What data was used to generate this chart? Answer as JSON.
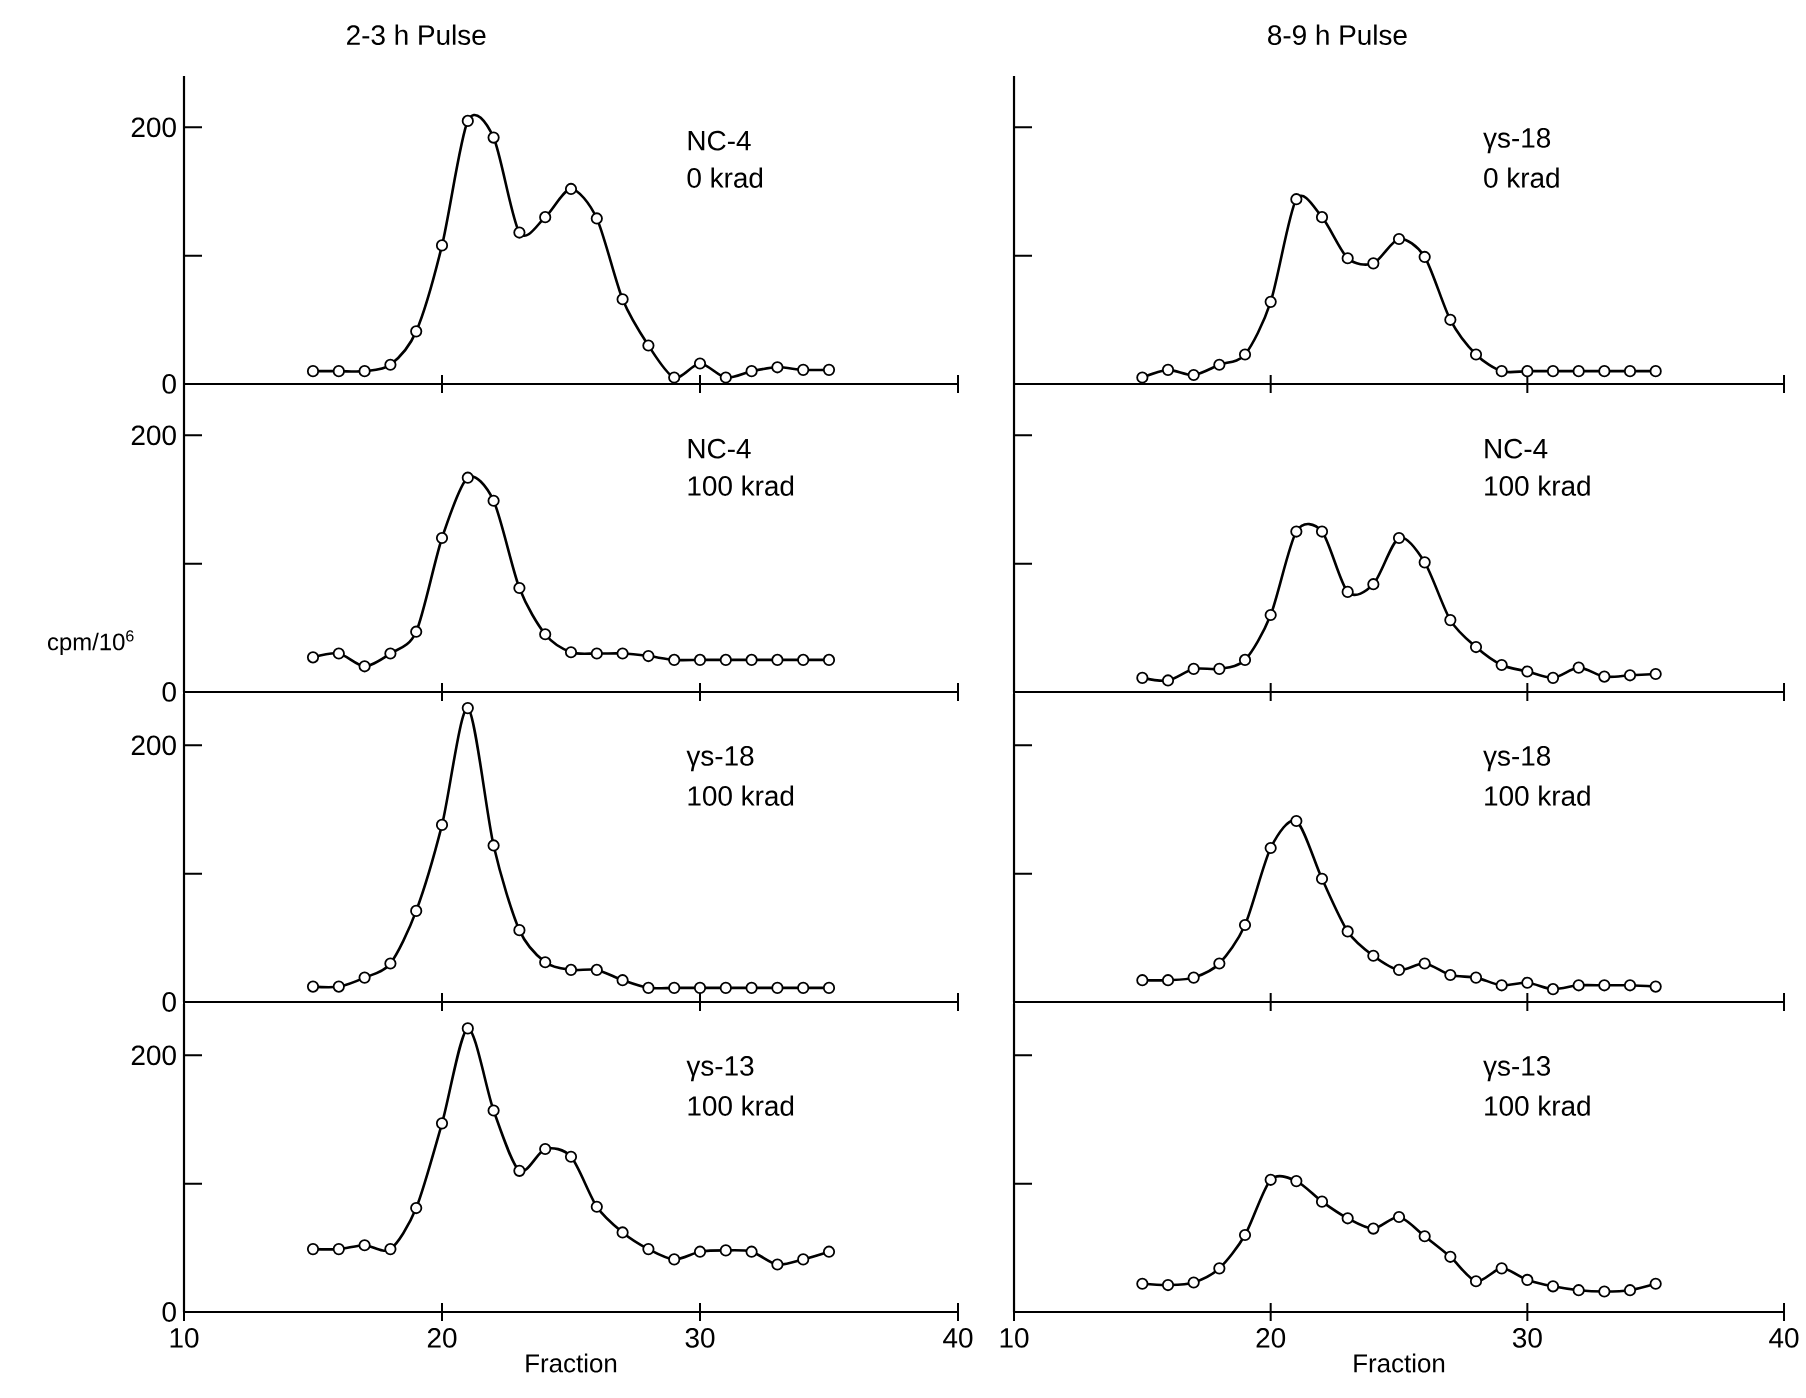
{
  "chart_data": [
    {
      "type": "line",
      "title": "2-3 h Pulse",
      "x": [
        15,
        16,
        17,
        18,
        19,
        20,
        21,
        22,
        23,
        24,
        25,
        26,
        27,
        28,
        29,
        30,
        31,
        32,
        33,
        34,
        35
      ],
      "series": [
        {
          "color": "#000000",
          "values": [
            10,
            10,
            10,
            15,
            41,
            108,
            205,
            192,
            118,
            130,
            152,
            129,
            66,
            30,
            5,
            16,
            5,
            10,
            13,
            11,
            11
          ]
        }
      ],
      "xlim": [
        10,
        40
      ],
      "ylim": [
        0,
        240
      ],
      "xticks": [
        10,
        20,
        30,
        40
      ],
      "yticks": [
        0,
        {
          "value": 100,
          "label": null
        },
        200
      ],
      "tick_labels": "y",
      "marker": "circle",
      "line_style": "solid",
      "annotations": [
        "NC-4",
        "0 krad"
      ]
    },
    {
      "type": "line",
      "title": "8-9 h Pulse",
      "x": [
        15,
        16,
        17,
        18,
        19,
        20,
        21,
        22,
        23,
        24,
        25,
        26,
        27,
        28,
        29,
        30,
        31,
        32,
        33,
        34,
        35
      ],
      "series": [
        {
          "color": "#000000",
          "values": [
            5,
            11,
            7,
            15,
            23,
            64,
            144,
            130,
            98,
            94,
            113,
            99,
            50,
            23,
            10,
            10,
            10,
            10,
            10,
            10,
            10
          ]
        }
      ],
      "xlim": [
        10,
        40
      ],
      "ylim": [
        0,
        240
      ],
      "xticks": [
        10,
        20,
        30,
        40
      ],
      "yticks": [
        {
          "value": 0,
          "label": null
        },
        {
          "value": 100,
          "label": null
        },
        {
          "value": 200,
          "label": null
        }
      ],
      "tick_labels": false,
      "marker": "circle",
      "line_style": "solid",
      "annotations": [
        "γs-18",
        "0 krad"
      ]
    },
    {
      "type": "line",
      "ylabel": "cpm/10$^{6}$",
      "x": [
        15,
        16,
        17,
        18,
        19,
        20,
        21,
        22,
        23,
        24,
        25,
        26,
        27,
        28,
        29,
        30,
        31,
        32,
        33,
        34,
        35
      ],
      "series": [
        {
          "color": "#000000",
          "values": [
            27,
            30,
            20,
            30,
            47,
            120,
            167,
            149,
            81,
            45,
            31,
            30,
            30,
            28,
            25,
            25,
            25,
            25,
            25,
            25,
            25
          ]
        }
      ],
      "xlim": [
        10,
        40
      ],
      "ylim": [
        0,
        240
      ],
      "xticks": [
        10,
        20,
        30,
        40
      ],
      "yticks": [
        0,
        {
          "value": 100,
          "label": null
        },
        200
      ],
      "tick_labels": "y",
      "marker": "circle",
      "line_style": "solid",
      "annotations": [
        "NC-4",
        "100 krad"
      ]
    },
    {
      "type": "line",
      "x": [
        15,
        16,
        17,
        18,
        19,
        20,
        21,
        22,
        23,
        24,
        25,
        26,
        27,
        28,
        29,
        30,
        31,
        32,
        33,
        34,
        35
      ],
      "series": [
        {
          "color": "#000000",
          "values": [
            11,
            9,
            18,
            18,
            25,
            60,
            125,
            125,
            78,
            84,
            120,
            101,
            56,
            35,
            21,
            16,
            11,
            19,
            12,
            13,
            14
          ]
        }
      ],
      "xlim": [
        10,
        40
      ],
      "ylim": [
        0,
        240
      ],
      "xticks": [
        10,
        20,
        30,
        40
      ],
      "yticks": [
        {
          "value": 0,
          "label": null
        },
        {
          "value": 100,
          "label": null
        },
        {
          "value": 200,
          "label": null
        }
      ],
      "tick_labels": false,
      "marker": "circle",
      "line_style": "solid",
      "annotations": [
        "NC-4",
        "100 krad"
      ]
    },
    {
      "type": "line",
      "x": [
        15,
        16,
        17,
        18,
        19,
        20,
        21,
        22,
        23,
        24,
        25,
        26,
        27,
        28,
        29,
        30,
        31,
        32,
        33,
        34,
        35
      ],
      "series": [
        {
          "color": "#000000",
          "values": [
            12,
            12,
            19,
            30,
            71,
            138,
            229,
            122,
            56,
            31,
            25,
            25,
            17,
            11,
            11,
            11,
            11,
            11,
            11,
            11,
            11
          ]
        }
      ],
      "xlim": [
        10,
        40
      ],
      "ylim": [
        0,
        240
      ],
      "xticks": [
        10,
        20,
        30,
        40
      ],
      "yticks": [
        0,
        {
          "value": 100,
          "label": null
        },
        200
      ],
      "tick_labels": "y",
      "marker": "circle",
      "line_style": "solid",
      "annotations": [
        "γs-18",
        "100 krad"
      ]
    },
    {
      "type": "line",
      "x": [
        15,
        16,
        17,
        18,
        19,
        20,
        21,
        22,
        23,
        24,
        25,
        26,
        27,
        28,
        29,
        30,
        31,
        32,
        33,
        34,
        35
      ],
      "series": [
        {
          "color": "#000000",
          "values": [
            17,
            17,
            19,
            30,
            60,
            120,
            141,
            96,
            55,
            36,
            25,
            30,
            21,
            19,
            13,
            15,
            10,
            13,
            13,
            13,
            12
          ]
        }
      ],
      "xlim": [
        10,
        40
      ],
      "ylim": [
        0,
        240
      ],
      "xticks": [
        10,
        20,
        30,
        40
      ],
      "yticks": [
        {
          "value": 0,
          "label": null
        },
        {
          "value": 100,
          "label": null
        },
        {
          "value": 200,
          "label": null
        }
      ],
      "tick_labels": false,
      "marker": "circle",
      "line_style": "solid",
      "annotations": [
        "γs-18",
        "100 krad"
      ]
    },
    {
      "type": "line",
      "xlabel": "Fraction",
      "x": [
        15,
        16,
        17,
        18,
        19,
        20,
        21,
        22,
        23,
        24,
        25,
        26,
        27,
        28,
        29,
        30,
        31,
        32,
        33,
        34,
        35
      ],
      "series": [
        {
          "color": "#000000",
          "values": [
            49,
            49,
            52,
            49,
            81,
            147,
            221,
            157,
            110,
            127,
            121,
            82,
            62,
            49,
            41,
            47,
            48,
            47,
            37,
            41,
            47
          ]
        }
      ],
      "xlim": [
        10,
        40
      ],
      "ylim": [
        0,
        240
      ],
      "xticks": [
        10,
        20,
        30,
        40
      ],
      "yticks": [
        0,
        {
          "value": 100,
          "label": null
        },
        200
      ],
      "marker": "circle",
      "line_style": "solid",
      "annotations": [
        "γs-13",
        "100 krad"
      ]
    },
    {
      "type": "line",
      "xlabel": "Fraction",
      "x": [
        15,
        16,
        17,
        18,
        19,
        20,
        21,
        22,
        23,
        24,
        25,
        26,
        27,
        28,
        29,
        30,
        31,
        32,
        33,
        34,
        35
      ],
      "series": [
        {
          "color": "#000000",
          "values": [
            22,
            21,
            23,
            34,
            60,
            103,
            102,
            86,
            73,
            65,
            74,
            59,
            43,
            24,
            34,
            25,
            20,
            17,
            16,
            17,
            22
          ]
        }
      ],
      "xlim": [
        10,
        40
      ],
      "ylim": [
        0,
        240
      ],
      "xticks": [
        10,
        20,
        30,
        40
      ],
      "yticks": [
        {
          "value": 0,
          "label": null
        },
        {
          "value": 100,
          "label": null
        },
        {
          "value": 200,
          "label": null
        }
      ],
      "tick_labels": "x",
      "marker": "circle",
      "line_style": "solid",
      "annotations": [
        "γs-13",
        "100 krad"
      ]
    }
  ]
}
